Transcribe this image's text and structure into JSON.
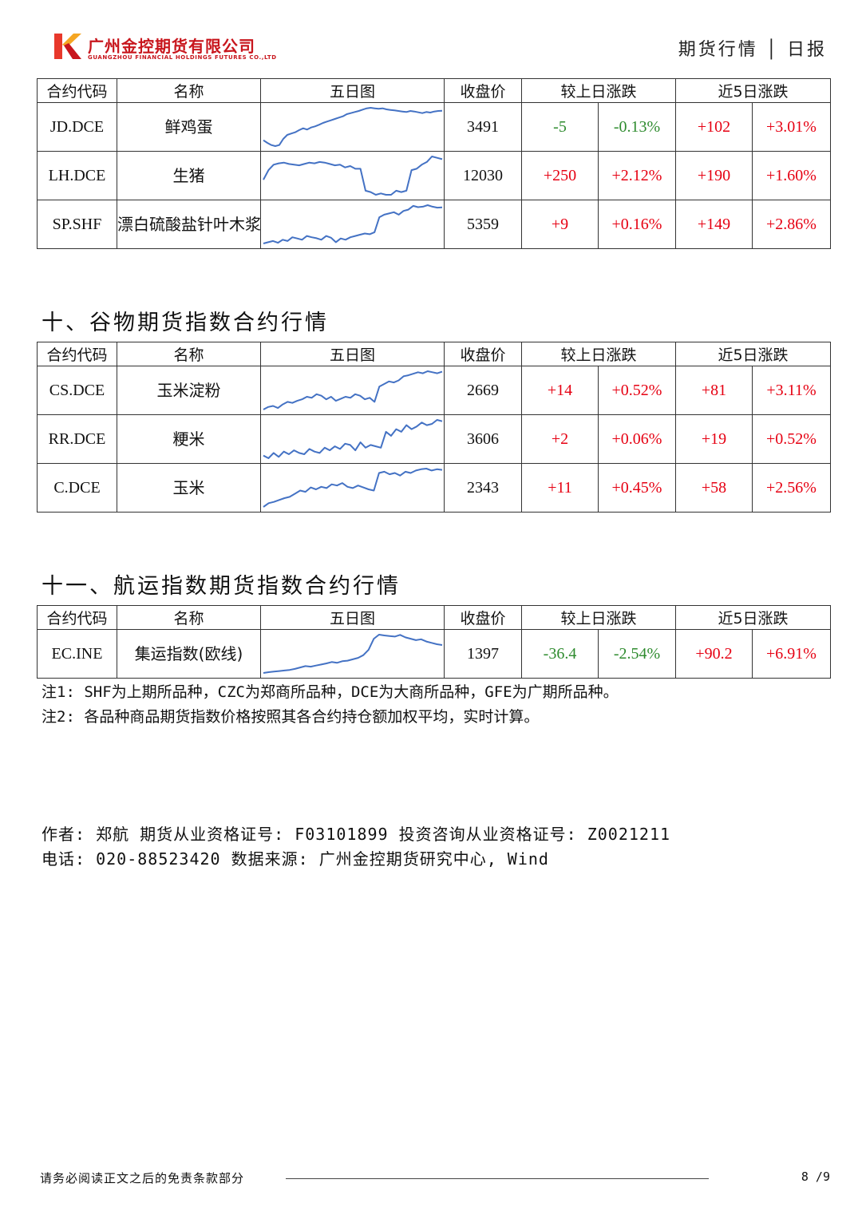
{
  "header": {
    "company_cn": "广州金控期货有限公司",
    "company_en": "GUANGZHOU FINANCIAL HOLDINGS FUTURES CO.,LTD",
    "report_type": "期货行情 │ 日报"
  },
  "colors": {
    "brand": "#c8161d",
    "up": "#e60012",
    "down": "#2e8b2e",
    "sparkline": "#4472c4"
  },
  "table_headers": {
    "code": "合约代码",
    "name": "名称",
    "chart": "五日图",
    "close": "收盘价",
    "daily_change": "较上日涨跌",
    "five_day_change": "近5日涨跌"
  },
  "sections": [
    {
      "title": "",
      "rows": [
        {
          "code": "JD.DCE",
          "name": "鲜鸡蛋",
          "close": "3491",
          "chg": "-5",
          "chg_pct": "-0.13%",
          "chg5": "+102",
          "chg5_pct": "+3.01%",
          "spark": [
            3380,
            3370,
            3362,
            3358,
            3362,
            3385,
            3400,
            3405,
            3410,
            3418,
            3425,
            3420,
            3428,
            3432,
            3438,
            3445,
            3450,
            3455,
            3460,
            3465,
            3470,
            3478,
            3482,
            3486,
            3490,
            3495,
            3500,
            3502,
            3500,
            3498,
            3500,
            3496,
            3494,
            3492,
            3490,
            3488,
            3486,
            3490,
            3488,
            3485,
            3482,
            3486,
            3484,
            3488,
            3490,
            3491
          ]
        },
        {
          "code": "LH.DCE",
          "name": "生猪",
          "close": "12030",
          "chg": "+250",
          "chg_pct": "+2.12%",
          "chg5": "+190",
          "chg5_pct": "+1.60%",
          "spark": [
            11880,
            11950,
            11990,
            12000,
            12005,
            11995,
            11990,
            11985,
            11995,
            12005,
            12000,
            12010,
            12005,
            11995,
            11985,
            11990,
            11970,
            11980,
            11960,
            11960,
            11800,
            11790,
            11770,
            11780,
            11770,
            11770,
            11800,
            11790,
            11800,
            11950,
            11960,
            11990,
            12010,
            12050,
            12040,
            12030
          ]
        },
        {
          "code": "SP.SHF",
          "name": "漂白硫酸盐针叶木浆",
          "close": "5359",
          "chg": "+9",
          "chg_pct": "+0.16%",
          "chg5": "+149",
          "chg5_pct": "+2.86%",
          "spark": [
            5215,
            5220,
            5225,
            5218,
            5230,
            5225,
            5240,
            5235,
            5230,
            5245,
            5240,
            5236,
            5230,
            5245,
            5238,
            5220,
            5235,
            5230,
            5240,
            5245,
            5250,
            5255,
            5252,
            5260,
            5320,
            5330,
            5335,
            5340,
            5330,
            5345,
            5350,
            5365,
            5360,
            5362,
            5368,
            5362,
            5358,
            5359
          ]
        }
      ]
    },
    {
      "title": "十、谷物期货指数合约行情",
      "rows": [
        {
          "code": "CS.DCE",
          "name": "玉米淀粉",
          "close": "2669",
          "chg": "+14",
          "chg_pct": "+0.52%",
          "chg5": "+81",
          "chg5_pct": "+3.11%",
          "spark": [
            2595,
            2600,
            2602,
            2598,
            2605,
            2610,
            2608,
            2612,
            2615,
            2620,
            2618,
            2625,
            2622,
            2615,
            2620,
            2612,
            2616,
            2620,
            2618,
            2625,
            2622,
            2615,
            2618,
            2610,
            2640,
            2645,
            2650,
            2648,
            2652,
            2660,
            2662,
            2665,
            2668,
            2666,
            2670,
            2668,
            2666,
            2669
          ]
        },
        {
          "code": "RR.DCE",
          "name": "粳米",
          "close": "3606",
          "chg": "+2",
          "chg_pct": "+0.06%",
          "chg5": "+19",
          "chg5_pct": "+0.52%",
          "spark": [
            3580,
            3578,
            3582,
            3579,
            3583,
            3581,
            3584,
            3582,
            3581,
            3585,
            3583,
            3582,
            3586,
            3584,
            3587,
            3585,
            3589,
            3588,
            3584,
            3590,
            3586,
            3588,
            3587,
            3586,
            3598,
            3595,
            3600,
            3598,
            3603,
            3600,
            3602,
            3605,
            3603,
            3604,
            3607,
            3606
          ]
        },
        {
          "code": "C.DCE",
          "name": "玉米",
          "close": "2343",
          "chg": "+11",
          "chg_pct": "+0.45%",
          "chg5": "+58",
          "chg5_pct": "+2.56%",
          "spark": [
            2284,
            2290,
            2292,
            2295,
            2298,
            2300,
            2305,
            2310,
            2308,
            2315,
            2312,
            2316,
            2314,
            2320,
            2318,
            2322,
            2316,
            2314,
            2318,
            2315,
            2312,
            2310,
            2338,
            2340,
            2336,
            2338,
            2334,
            2340,
            2338,
            2342,
            2344,
            2345,
            2342,
            2344,
            2343
          ]
        }
      ]
    },
    {
      "title": "十一、航运指数期货指数合约行情",
      "rows": [
        {
          "code": "EC.INE",
          "name": "集运指数(欧线)",
          "close": "1397",
          "chg": "-36.4",
          "chg_pct": "-2.54%",
          "chg5": "+90.2",
          "chg5_pct": "+6.91%",
          "spark": [
            1295,
            1298,
            1300,
            1302,
            1304,
            1306,
            1310,
            1315,
            1320,
            1318,
            1322,
            1326,
            1330,
            1335,
            1332,
            1338,
            1340,
            1345,
            1350,
            1360,
            1380,
            1420,
            1435,
            1432,
            1430,
            1428,
            1434,
            1425,
            1420,
            1415,
            1418,
            1410,
            1405,
            1400,
            1397
          ]
        }
      ]
    }
  ],
  "notes": [
    "注1: SHF为上期所品种，CZC为郑商所品种，DCE为大商所品种，GFE为广期所品种。",
    "注2: 各品种商品期货指数价格按照其各合约持仓额加权平均，实时计算。"
  ],
  "author": {
    "line1": "作者: 郑航  期货从业资格证号: F03101899  投资咨询从业资格证号: Z0021211",
    "line2": "电话: 020-88523420  数据来源: 广州金控期货研究中心, Wind"
  },
  "footer": {
    "disclaimer": "请务必阅读正文之后的免责条款部分",
    "page": "8 /9"
  }
}
